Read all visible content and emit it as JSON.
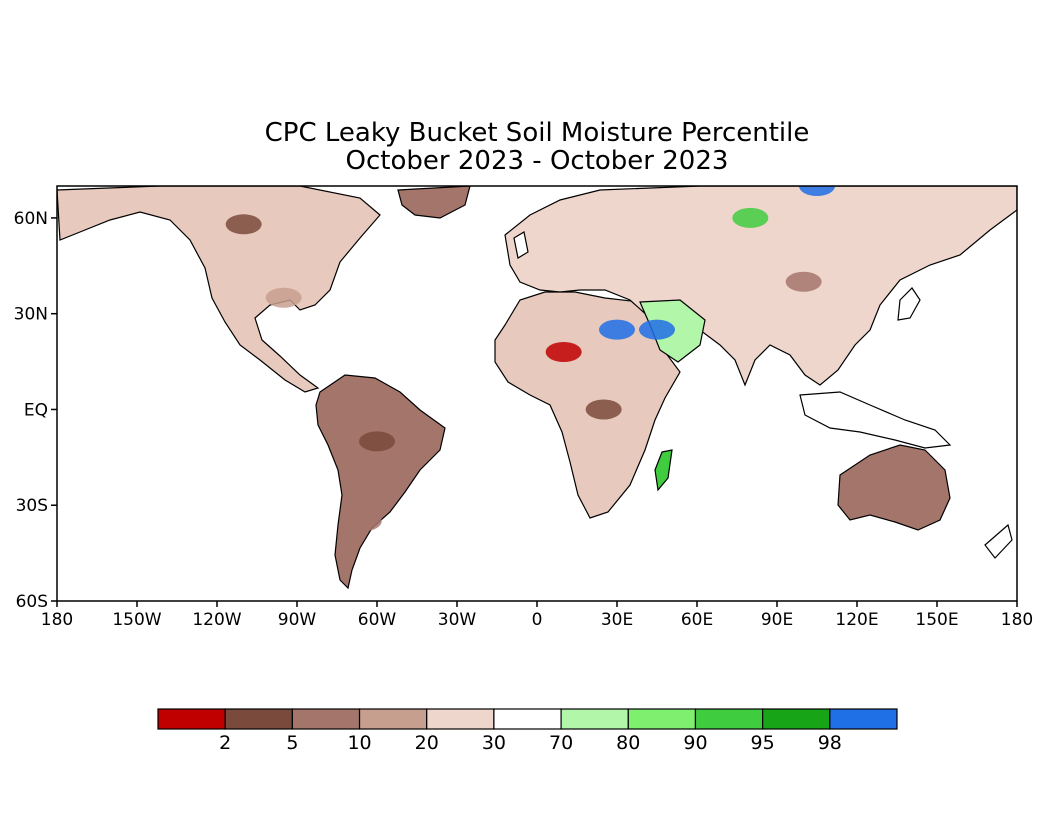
{
  "title": {
    "line1": "CPC Leaky Bucket Soil Moisture Percentile",
    "line2": "October 2023 - October 2023"
  },
  "map": {
    "lon_range": [
      -180,
      180
    ],
    "lat_range": [
      -60,
      70
    ],
    "lat_ticks": [
      {
        "value": 60,
        "label": "60N"
      },
      {
        "value": 30,
        "label": "30N"
      },
      {
        "value": 0,
        "label": "EQ"
      },
      {
        "value": -30,
        "label": "30S"
      },
      {
        "value": -60,
        "label": "60S"
      }
    ],
    "lon_ticks": [
      {
        "value": -180,
        "label": "180"
      },
      {
        "value": -150,
        "label": "150W"
      },
      {
        "value": -120,
        "label": "120W"
      },
      {
        "value": -90,
        "label": "90W"
      },
      {
        "value": -60,
        "label": "60W"
      },
      {
        "value": -30,
        "label": "30W"
      },
      {
        "value": 0,
        "label": "0"
      },
      {
        "value": 30,
        "label": "30E"
      },
      {
        "value": 60,
        "label": "60E"
      },
      {
        "value": 90,
        "label": "90E"
      },
      {
        "value": 120,
        "label": "120E"
      },
      {
        "value": 150,
        "label": "150E"
      },
      {
        "value": 180,
        "label": "180"
      }
    ],
    "regions": [
      {
        "lon": -110,
        "lat": 58,
        "color": "#7a4b3c"
      },
      {
        "lon": -95,
        "lat": 35,
        "color": "#c79f8f"
      },
      {
        "lon": -60,
        "lat": -10,
        "color": "#7a4b3c"
      },
      {
        "lon": -65,
        "lat": -35,
        "color": "#a4756b"
      },
      {
        "lon": 10,
        "lat": 18,
        "color": "#c00000"
      },
      {
        "lon": 25,
        "lat": 0,
        "color": "#7a4b3c"
      },
      {
        "lon": 45,
        "lat": 25,
        "color": "#1f6fe6"
      },
      {
        "lon": 30,
        "lat": 25,
        "color": "#1f6fe6"
      },
      {
        "lon": 80,
        "lat": 60,
        "color": "#3fcd3f"
      },
      {
        "lon": 100,
        "lat": 40,
        "color": "#a4756b"
      },
      {
        "lon": 135,
        "lat": -25,
        "color": "#a4756b"
      },
      {
        "lon": 105,
        "lat": 70,
        "color": "#1f6fe6"
      }
    ]
  },
  "legend": {
    "colors": [
      "#c00000",
      "#7a4b3c",
      "#a4756b",
      "#c79f8f",
      "#efd6cc",
      "#ffffff",
      "#b2f7a9",
      "#7fef6f",
      "#3fcd3f",
      "#17a517",
      "#1f6fe6"
    ],
    "labels": [
      "2",
      "5",
      "10",
      "20",
      "30",
      "70",
      "80",
      "90",
      "95",
      "98"
    ]
  }
}
